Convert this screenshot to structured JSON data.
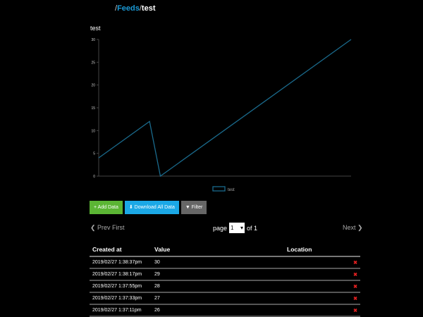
{
  "breadcrumb": {
    "separator": "/",
    "feeds": "Feeds",
    "current": "test"
  },
  "chart_data": {
    "type": "line",
    "title": "test",
    "ylim": [
      0,
      30
    ],
    "yticks": [
      0,
      5,
      10,
      15,
      20,
      25,
      30
    ],
    "series": [
      {
        "name": "test",
        "color": "#1a6a8c",
        "points": [
          [
            0,
            4
          ],
          [
            8,
            12
          ],
          [
            9.7,
            0
          ],
          [
            39.7,
            30
          ]
        ]
      }
    ],
    "legend": "bottom",
    "grid": false
  },
  "buttons": {
    "add": "+ Add Data",
    "download": "⬇ Download All Data",
    "filter": "▼ Filter"
  },
  "colors": {
    "add": "#5bb534",
    "download": "#1ba8e6",
    "filter": "#666666"
  },
  "pagination": {
    "prev": "❮ Prev",
    "first": "First",
    "page_label": "page",
    "page": "1",
    "of": "of 1",
    "next": "Next ❯"
  },
  "table": {
    "headers": [
      "Created at",
      "Value",
      "Location"
    ],
    "rows": [
      {
        "created": "2019/02/27 1:38:37pm",
        "value": "30"
      },
      {
        "created": "2019/02/27 1:38:17pm",
        "value": "29"
      },
      {
        "created": "2019/02/27 1:37:55pm",
        "value": "28"
      },
      {
        "created": "2019/02/27 1:37:33pm",
        "value": "27"
      },
      {
        "created": "2019/02/27 1:37:11pm",
        "value": "26"
      }
    ],
    "delete_glyph": "✖"
  }
}
